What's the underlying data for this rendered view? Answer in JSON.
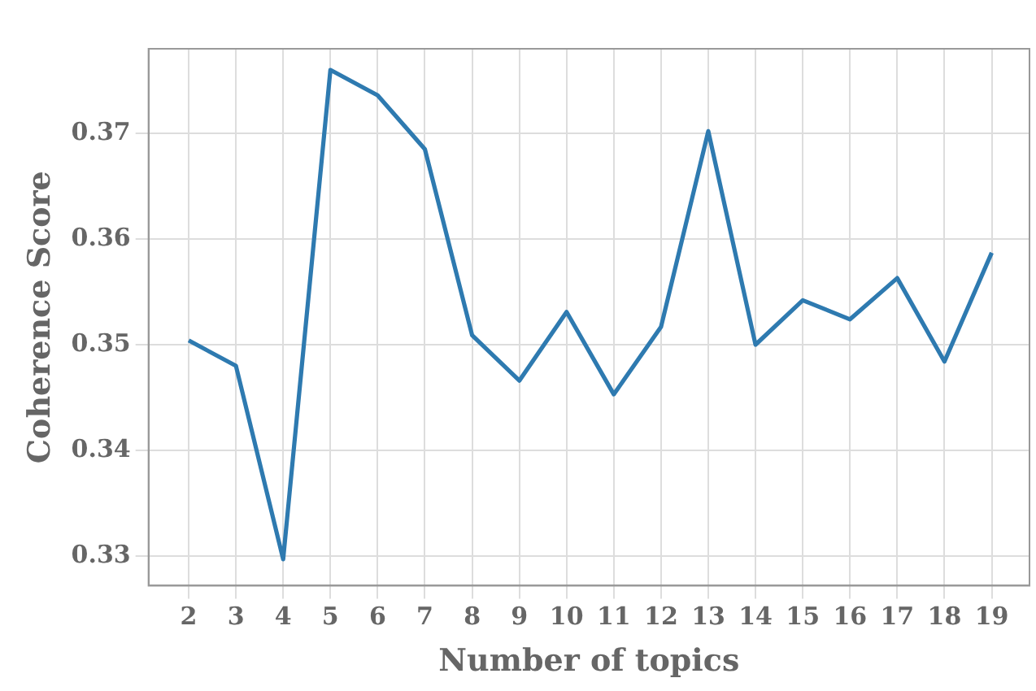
{
  "chart_data": {
    "type": "line",
    "xlabel": "Number of topics",
    "ylabel": "Coherence Score",
    "x": [
      2,
      3,
      4,
      5,
      6,
      7,
      8,
      9,
      10,
      11,
      12,
      13,
      14,
      15,
      16,
      17,
      18,
      19
    ],
    "series": [
      {
        "color": "#2e7ab0",
        "values": [
          0.3504,
          0.348,
          0.3297,
          0.376,
          0.3736,
          0.3685,
          0.3509,
          0.3466,
          0.3531,
          0.3453,
          0.3517,
          0.3702,
          0.35,
          0.3542,
          0.3524,
          0.3563,
          0.3484,
          0.3587
        ]
      }
    ],
    "xlim": [
      1.15,
      19.8
    ],
    "xticks": [
      2,
      3,
      4,
      5,
      6,
      7,
      8,
      9,
      10,
      11,
      12,
      13,
      14,
      15,
      16,
      17,
      18,
      19
    ],
    "ylim": [
      0.3272,
      0.378
    ],
    "yticks": [
      {
        "value": 0.33,
        "label": "0.33"
      },
      {
        "value": 0.34,
        "label": "0.34"
      },
      {
        "value": 0.35,
        "label": "0.35"
      },
      {
        "value": 0.36,
        "label": "0.36"
      },
      {
        "value": 0.37,
        "label": "0.37"
      }
    ],
    "grid": true,
    "legend": false,
    "marker": "none",
    "line_style": "solid"
  }
}
